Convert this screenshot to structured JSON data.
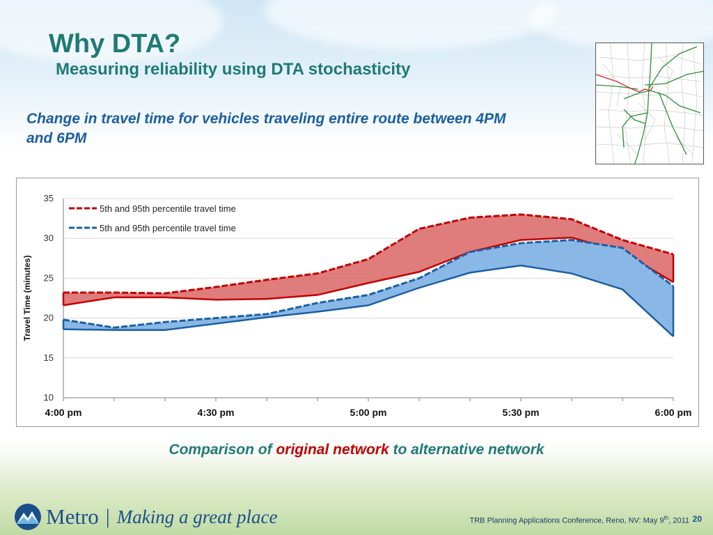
{
  "slide": {
    "title": "Why DTA?",
    "subtitle": "Measuring reliability using DTA stochasticity",
    "lead_text": "Change in travel time for vehicles traveling entire route between 4PM and 6PM",
    "caption_before": "Comparison of",
    "caption_highlight": "original network",
    "caption_after": "to alternative network",
    "footer": {
      "logo_word": "Metro",
      "logo_separator": "|",
      "tagline": "Making a great place",
      "note_before": "TRB Planning Applications Conference,  Reno, NV: May 9",
      "note_sup": "th",
      "note_after": ", 2011",
      "page_number": "20"
    }
  },
  "colors": {
    "title": "#1f7a76",
    "lead_text": "#1a5ea0",
    "caption_highlight": "#c00000",
    "original_line": "#c00000",
    "original_fill": "#dc6e6e",
    "alternative_line": "#1b5fa3",
    "alternative_fill": "#8ab8e6"
  },
  "icons": {
    "logo": "metro-logo-icon",
    "map": "route-map-thumbnail"
  },
  "chart_data": {
    "type": "area",
    "ylabel": "Travel Time (minutes)",
    "xlabel": "",
    "ylim": [
      10,
      35
    ],
    "yticks": [
      10,
      15,
      20,
      25,
      30,
      35
    ],
    "xlim": [
      0,
      120
    ],
    "xtick_labels": [
      "4:00 pm",
      "4:30 pm",
      "5:00 pm",
      "5:30 pm",
      "6:00 pm"
    ],
    "grid": "horizontal",
    "legend": "top-left",
    "x": [
      0,
      10,
      20,
      30,
      40,
      50,
      60,
      70,
      80,
      90,
      100,
      110,
      120
    ],
    "series": [
      {
        "name": "5th and 95th percentile travel time",
        "network": "original",
        "low": [
          21.6,
          22.6,
          22.6,
          22.3,
          22.4,
          22.9,
          24.4,
          25.8,
          28.3,
          29.8,
          30.1,
          28.3,
          24.5
        ],
        "high": [
          23.2,
          23.2,
          23.1,
          23.9,
          24.8,
          25.6,
          27.4,
          31.2,
          32.6,
          33.0,
          32.4,
          29.8,
          28.0
        ]
      },
      {
        "name": "5th and 95th percentile travel time",
        "network": "alternative",
        "low": [
          18.6,
          18.5,
          18.5,
          19.3,
          20.1,
          20.8,
          21.6,
          23.8,
          25.7,
          26.6,
          25.6,
          23.6,
          17.7
        ],
        "high": [
          19.8,
          18.8,
          19.5,
          20.0,
          20.5,
          21.9,
          22.9,
          25.0,
          28.3,
          29.4,
          29.8,
          28.8,
          24.0
        ]
      }
    ]
  }
}
